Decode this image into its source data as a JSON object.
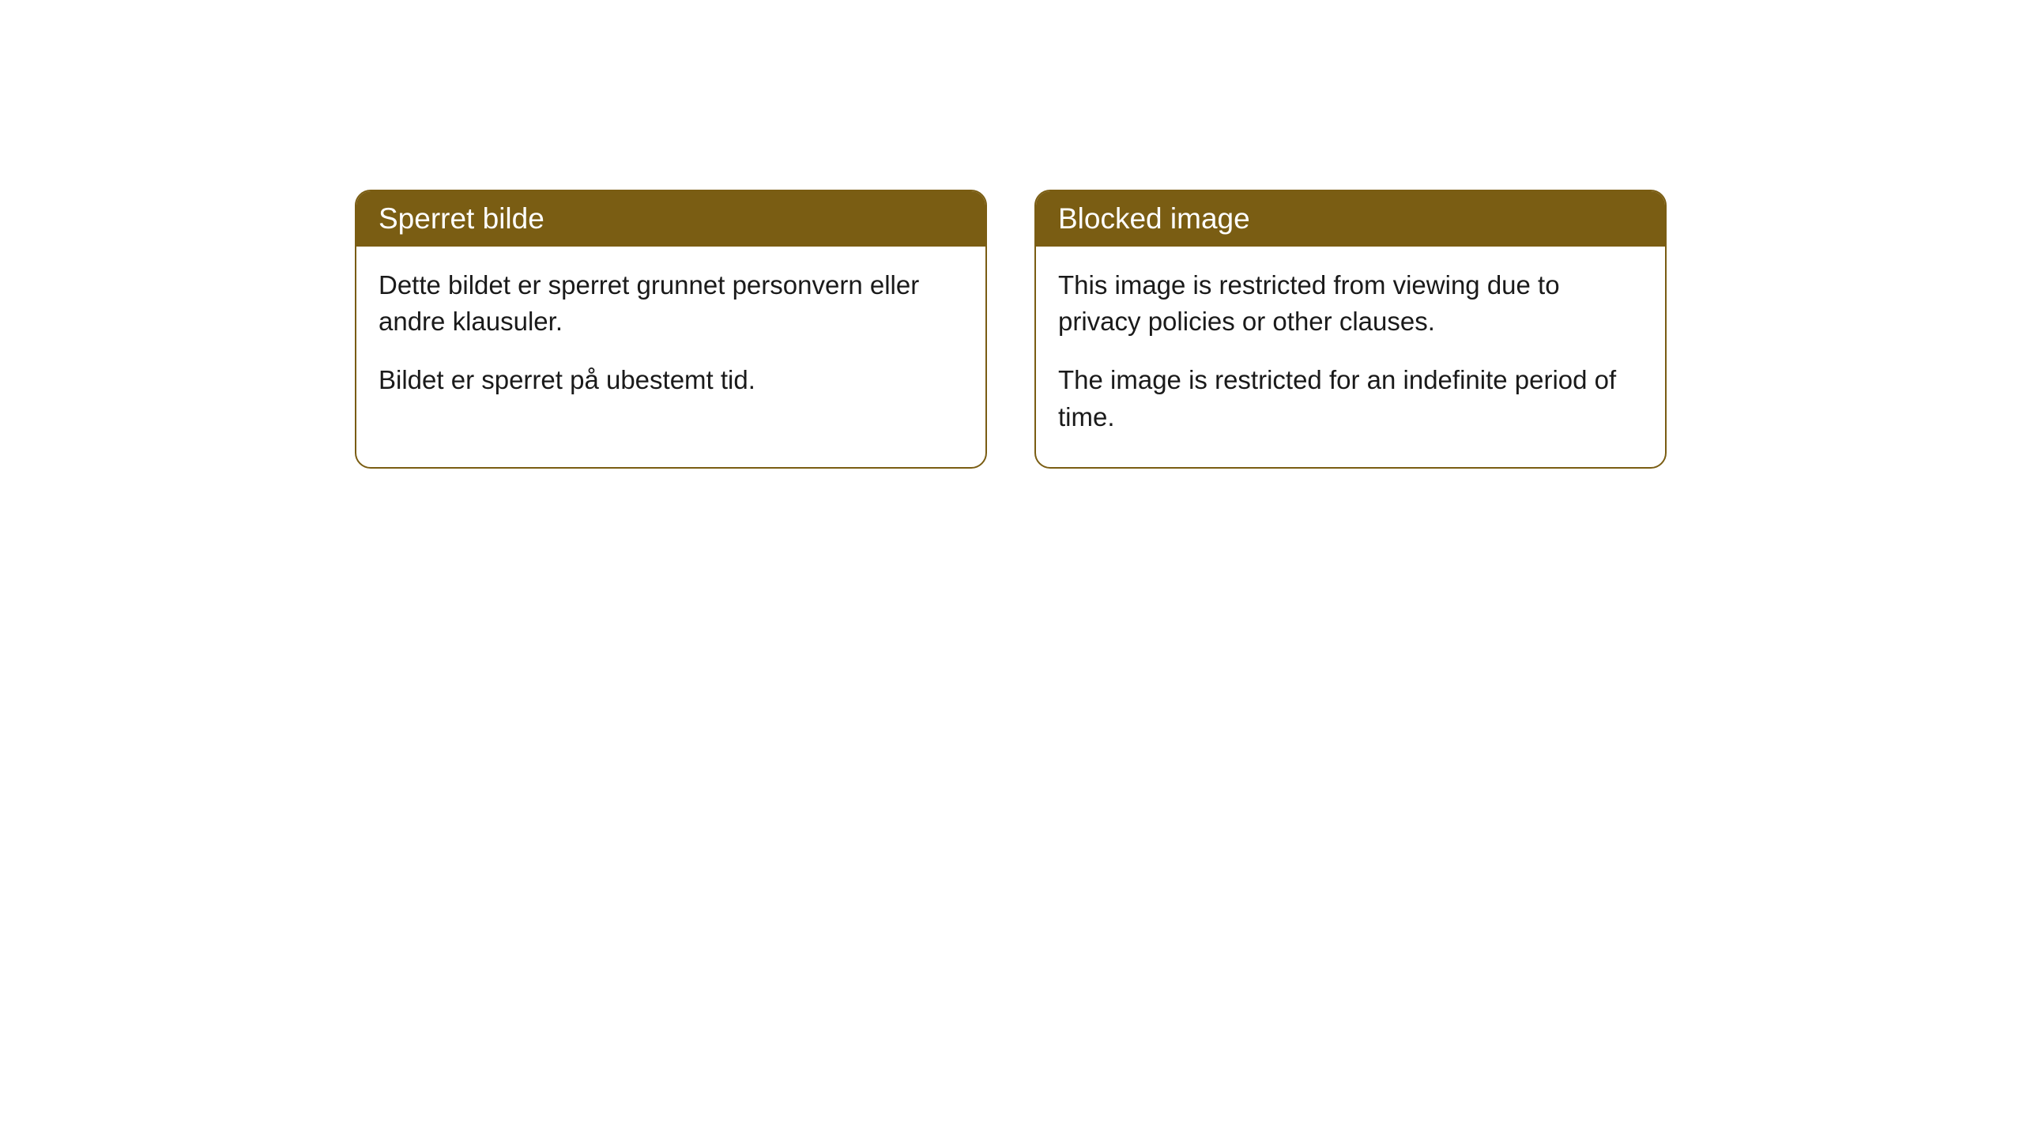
{
  "cards": [
    {
      "title": "Sperret bilde",
      "paragraph1": "Dette bildet er sperret grunnet personvern eller andre klausuler.",
      "paragraph2": "Bildet er sperret på ubestemt tid."
    },
    {
      "title": "Blocked image",
      "paragraph1": "This image is restricted from viewing due to privacy policies or other clauses.",
      "paragraph2": "The image is restricted for an indefinite period of time."
    }
  ],
  "styling": {
    "header_background": "#7a5d13",
    "header_text_color": "#ffffff",
    "border_color": "#7a5d13",
    "body_background": "#ffffff",
    "body_text_color": "#1a1a1a",
    "page_background": "#ffffff",
    "border_radius": 20,
    "header_fontsize": 37,
    "body_fontsize": 33
  }
}
